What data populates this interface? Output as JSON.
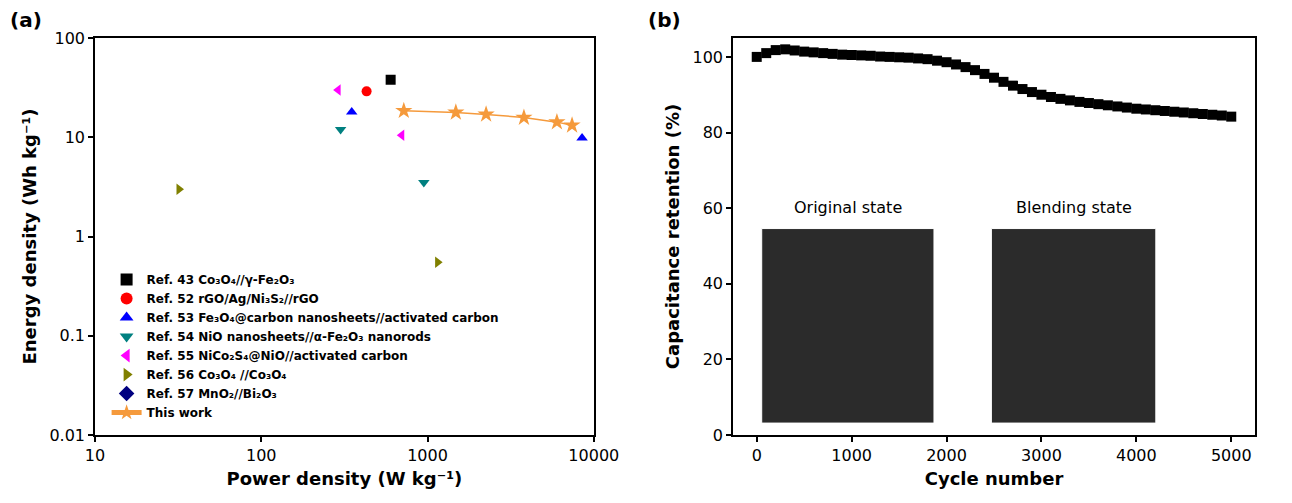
{
  "chart_data": [
    {
      "type": "scatter",
      "panel_label": "(a)",
      "xlabel": "Power density (W kg⁻¹)",
      "ylabel": "Energy density (Wh kg⁻¹)",
      "log": true,
      "grid": false,
      "legend": "lower left",
      "xlim": [
        10,
        10000
      ],
      "xticks": [
        10,
        100,
        1000,
        10000
      ],
      "ylim": [
        0.01,
        100
      ],
      "yticks": [
        0.01,
        0.1,
        1,
        10,
        100
      ],
      "series": [
        {
          "name": "Ref. 43 Co₃O₄//γ-Fe₂O₃",
          "color": "#000000",
          "marker": "square",
          "line_style": "none",
          "x": [
            600
          ],
          "values": [
            38
          ]
        },
        {
          "name": "Ref. 52 rGO/Ag/Ni₃S₂//rGO",
          "color": "#ff0000",
          "marker": "circle",
          "line_style": "none",
          "x": [
            430
          ],
          "values": [
            29
          ]
        },
        {
          "name": "Ref. 53 Fe₃O₄@carbon nanosheets//activated carbon",
          "color": "#0000ff",
          "marker": "triangle-up",
          "line_style": "none",
          "x": [
            350,
            8500
          ],
          "values": [
            18,
            9.8
          ]
        },
        {
          "name": "Ref. 54 NiO nanosheets//α-Fe₂O₃ nanorods",
          "color": "#008080",
          "marker": "triangle-down",
          "line_style": "none",
          "x": [
            300,
            950
          ],
          "values": [
            12,
            3.5
          ]
        },
        {
          "name": "Ref. 55 NiCo₂S₄@NiO//activated carbon",
          "color": "#ff00ff",
          "marker": "triangle-left",
          "line_style": "none",
          "x": [
            290,
            700
          ],
          "values": [
            30,
            10.5
          ]
        },
        {
          "name": "Ref. 56 Co₃O₄ //Co₃O₄",
          "color": "#808000",
          "marker": "triangle-right",
          "line_style": "none",
          "x": [
            32,
            1150
          ],
          "values": [
            3,
            0.55
          ]
        },
        {
          "name": "Ref. 57 MnO₂//Bi₂O₃",
          "color": "#000080",
          "marker": "diamond",
          "line_style": "none",
          "x": [
            null
          ],
          "values": [
            null
          ]
        },
        {
          "name": "This work",
          "color": "#f59a3c",
          "marker": "star",
          "line_style": "solid",
          "x": [
            720,
            1480,
            2250,
            3800,
            6000,
            7400
          ],
          "values": [
            18.5,
            17.8,
            17,
            15.8,
            14.2,
            13.2
          ]
        }
      ]
    },
    {
      "type": "scatter",
      "panel_label": "(b)",
      "xlabel": "Cycle number",
      "ylabel": "Capacitance retention (%)",
      "grid": false,
      "xlim": [
        -250,
        5250
      ],
      "xticks": [
        0,
        1000,
        2000,
        3000,
        4000,
        5000
      ],
      "ylim": [
        0,
        105
      ],
      "yticks": [
        0,
        20,
        40,
        60,
        80,
        100
      ],
      "annotations": [
        "Original state",
        "Blending state"
      ],
      "series": [
        {
          "color": "#000000",
          "marker": "square",
          "line_style": "none",
          "x": [
            0,
            100,
            200,
            300,
            400,
            500,
            600,
            700,
            800,
            900,
            1000,
            1100,
            1200,
            1300,
            1400,
            1500,
            1600,
            1700,
            1800,
            1900,
            2000,
            2100,
            2200,
            2300,
            2400,
            2500,
            2600,
            2700,
            2800,
            2900,
            3000,
            3100,
            3200,
            3300,
            3400,
            3500,
            3600,
            3700,
            3800,
            3900,
            4000,
            4100,
            4200,
            4300,
            4400,
            4500,
            4600,
            4700,
            4800,
            4900,
            5000
          ],
          "values": [
            100.0,
            101.0,
            101.8,
            102.0,
            101.7,
            101.4,
            101.2,
            101.0,
            100.8,
            100.6,
            100.5,
            100.4,
            100.3,
            100.1,
            100.0,
            99.9,
            99.8,
            99.6,
            99.4,
            99.0,
            98.6,
            98.0,
            97.3,
            96.5,
            95.5,
            94.5,
            93.4,
            92.4,
            91.5,
            90.7,
            90.0,
            89.4,
            88.9,
            88.5,
            88.1,
            87.8,
            87.5,
            87.2,
            86.9,
            86.6,
            86.3,
            86.1,
            85.9,
            85.7,
            85.5,
            85.3,
            85.1,
            84.9,
            84.7,
            84.5,
            84.2
          ]
        }
      ]
    }
  ]
}
